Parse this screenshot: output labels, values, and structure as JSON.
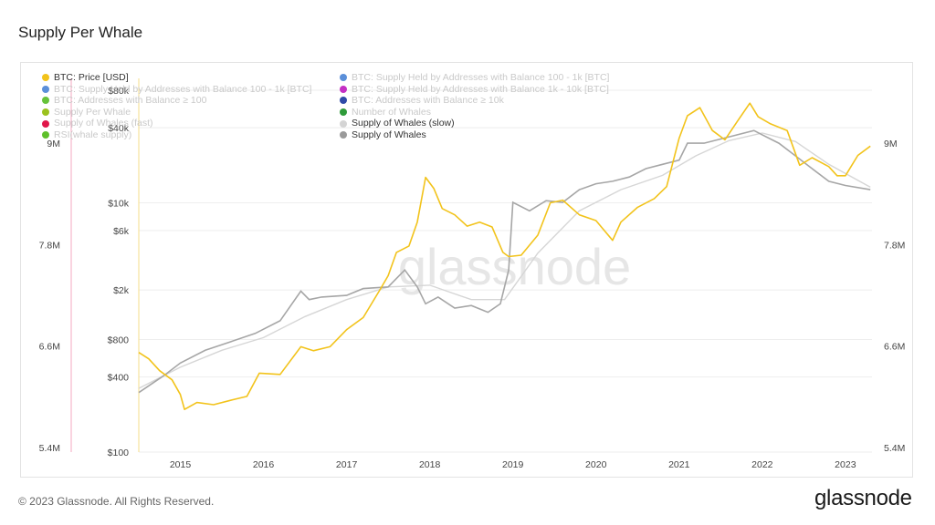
{
  "page": {
    "title": "Supply Per Whale",
    "footer": "© 2023 Glassnode. All Rights Reserved.",
    "brand": "glassnode",
    "watermark": "glassnode"
  },
  "legend": [
    {
      "label": "BTC: Price [USD]",
      "color": "#f2c31b",
      "active": true
    },
    {
      "label": "BTC: Supply Held by Addresses with Balance 100 - 1k [BTC]",
      "color": "#5b8fd9",
      "active": false
    },
    {
      "label": "BTC: Supply Held by Addresses with Balance 1k - 10k [BTC]",
      "color": "#c42fc4",
      "active": false
    },
    {
      "label": "BTC: Addresses with Balance ≥ 100",
      "color": "#66c23a",
      "active": false
    },
    {
      "label": "BTC: Addresses with Balance ≥ 10k",
      "color": "#2f4aa8",
      "active": false
    },
    {
      "label": "Supply Per Whale",
      "color": "#9bc21f",
      "active": false
    },
    {
      "label": "Number of Whales",
      "color": "#2e9b3a",
      "active": false
    },
    {
      "label": "Supply of Whales (fast)",
      "color": "#e0174a",
      "active": false
    },
    {
      "label": "Supply of Whales (slow)",
      "color": "#d4d4d4",
      "active": true
    },
    {
      "label": "RSI(whale supply)",
      "color": "#5ec02a",
      "active": false
    },
    {
      "label": "Supply of Whales",
      "color": "#9a9a9a",
      "active": true
    }
  ],
  "chart_data": {
    "type": "line",
    "x_ticks": [
      "2015",
      "2016",
      "2017",
      "2018",
      "2019",
      "2020",
      "2021",
      "2022",
      "2023"
    ],
    "x_range": [
      "2014-06",
      "2023-05"
    ],
    "left_axis": {
      "scale": "log",
      "ticks": [
        "$80k",
        "$40k",
        "$10k",
        "$6k",
        "$2k",
        "$800",
        "$400",
        "$100"
      ],
      "range": [
        100,
        90000
      ]
    },
    "right_axis": {
      "ticks": [
        "9M",
        "7.8M",
        "6.6M",
        "5.4M"
      ],
      "range": [
        5400000,
        9100000
      ]
    },
    "outer_axis": {
      "ticks": [
        "9M",
        "7.8M",
        "6.6M",
        "5.4M"
      ]
    },
    "colors": {
      "price": "#f2c31b",
      "supply": "#a6a6a6",
      "supply_slow": "#d6d6d6",
      "marker": "#f4a9c0"
    },
    "series": [
      {
        "name": "BTC: Price [USD]",
        "axis": "left",
        "x": [
          2014.5,
          2014.62,
          2014.75,
          2014.9,
          2015.0,
          2015.05,
          2015.2,
          2015.4,
          2015.6,
          2015.8,
          2015.95,
          2016.2,
          2016.45,
          2016.6,
          2016.8,
          2017.0,
          2017.2,
          2017.4,
          2017.5,
          2017.6,
          2017.75,
          2017.85,
          2017.95,
          2018.05,
          2018.15,
          2018.3,
          2018.45,
          2018.6,
          2018.75,
          2018.88,
          2018.95,
          2019.1,
          2019.3,
          2019.45,
          2019.6,
          2019.8,
          2020.0,
          2020.2,
          2020.3,
          2020.5,
          2020.7,
          2020.85,
          2021.0,
          2021.1,
          2021.25,
          2021.4,
          2021.55,
          2021.7,
          2021.85,
          2021.95,
          2022.1,
          2022.3,
          2022.45,
          2022.6,
          2022.8,
          2022.9,
          2023.0,
          2023.15,
          2023.3
        ],
        "values": [
          630,
          560,
          450,
          380,
          290,
          220,
          250,
          240,
          260,
          280,
          430,
          420,
          700,
          650,
          700,
          960,
          1200,
          2000,
          2600,
          4000,
          4500,
          7000,
          16000,
          13000,
          9000,
          8000,
          6500,
          7000,
          6400,
          4000,
          3700,
          3800,
          5500,
          10000,
          10500,
          8000,
          7200,
          5000,
          7000,
          9200,
          10800,
          13500,
          33000,
          50000,
          58000,
          38000,
          32000,
          45000,
          63000,
          49000,
          43000,
          38000,
          20000,
          23000,
          19500,
          16500,
          16500,
          24000,
          28500
        ]
      },
      {
        "name": "Supply of Whales",
        "axis": "right",
        "x": [
          2014.5,
          2014.8,
          2015.0,
          2015.3,
          2015.6,
          2015.9,
          2016.2,
          2016.45,
          2016.55,
          2016.7,
          2017.0,
          2017.2,
          2017.5,
          2017.7,
          2017.85,
          2017.95,
          2018.1,
          2018.3,
          2018.5,
          2018.7,
          2018.85,
          2018.95,
          2019.0,
          2019.2,
          2019.4,
          2019.6,
          2019.8,
          2020.0,
          2020.2,
          2020.4,
          2020.6,
          2020.8,
          2021.0,
          2021.1,
          2021.3,
          2021.5,
          2021.7,
          2021.9,
          2022.0,
          2022.2,
          2022.4,
          2022.6,
          2022.8,
          2023.0,
          2023.3
        ],
        "values": [
          6050000,
          6250000,
          6400000,
          6550000,
          6650000,
          6750000,
          6900000,
          7250000,
          7150000,
          7180000,
          7200000,
          7280000,
          7300000,
          7500000,
          7300000,
          7100000,
          7180000,
          7050000,
          7080000,
          7000000,
          7100000,
          7500000,
          8300000,
          8200000,
          8320000,
          8300000,
          8450000,
          8520000,
          8550000,
          8600000,
          8700000,
          8750000,
          8800000,
          9000000,
          9000000,
          9050000,
          9100000,
          9150000,
          9100000,
          9000000,
          8850000,
          8700000,
          8550000,
          8500000,
          8450000
        ]
      },
      {
        "name": "Supply of Whales (slow)",
        "axis": "right",
        "x": [
          2014.5,
          2015.0,
          2015.5,
          2016.0,
          2016.5,
          2017.0,
          2017.5,
          2018.0,
          2018.5,
          2018.9,
          2019.3,
          2019.8,
          2020.3,
          2020.8,
          2021.2,
          2021.6,
          2022.0,
          2022.4,
          2022.8,
          2023.3
        ],
        "values": [
          6100000,
          6350000,
          6550000,
          6700000,
          6950000,
          7150000,
          7300000,
          7320000,
          7150000,
          7150000,
          7700000,
          8200000,
          8450000,
          8620000,
          8850000,
          9030000,
          9120000,
          9020000,
          8750000,
          8480000
        ]
      }
    ]
  }
}
